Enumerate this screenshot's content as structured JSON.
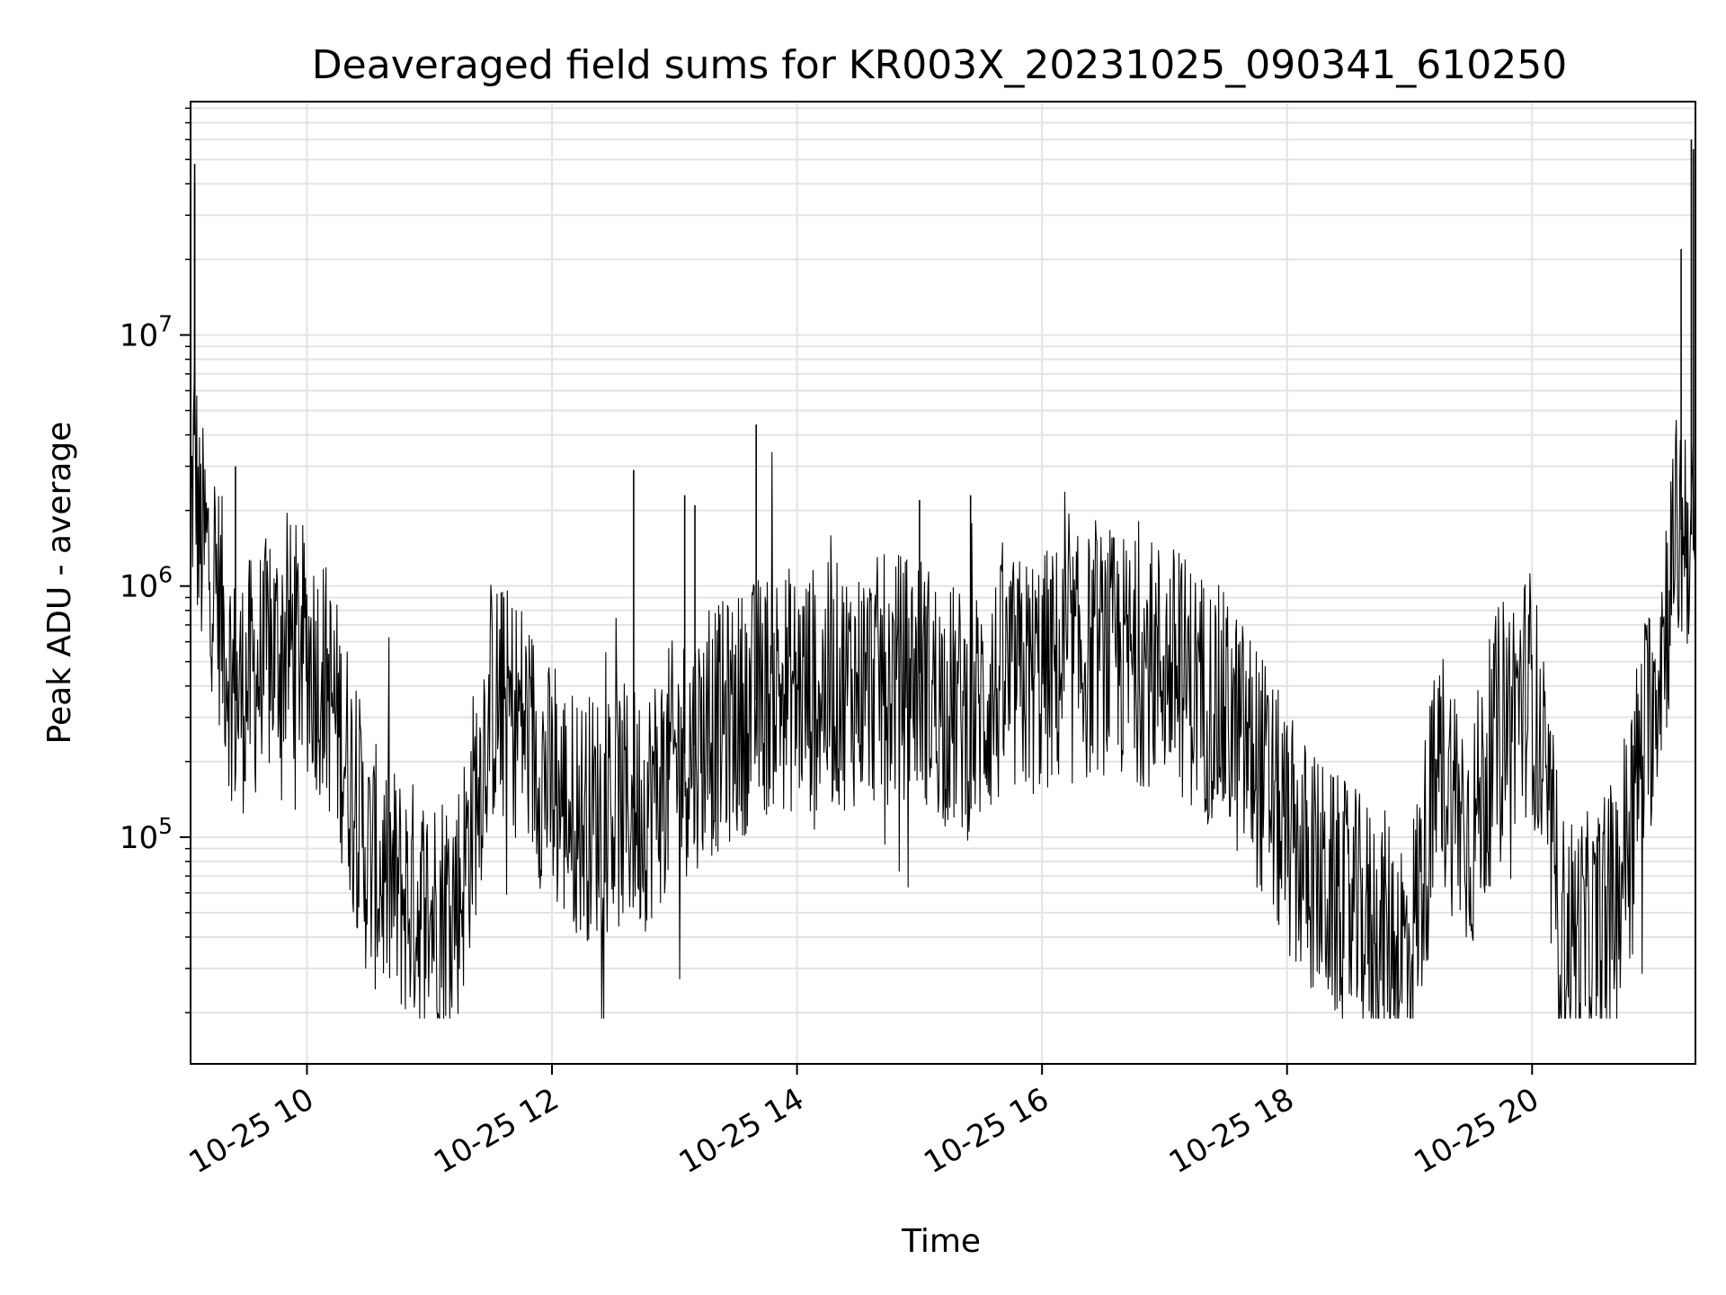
{
  "chart_data": {
    "type": "line",
    "title": "Deaveraged field sums for KR003X_20231025_090341_610250",
    "xlabel": "Time",
    "ylabel": "Peak ADU - average",
    "x_axis": {
      "type": "time",
      "range": [
        "2023-10-25 09:03",
        "2023-10-25 21:20"
      ],
      "ticks": [
        "2023-10-25 10:00",
        "2023-10-25 12:00",
        "2023-10-25 14:00",
        "2023-10-25 16:00",
        "2023-10-25 18:00",
        "2023-10-25 20:00"
      ],
      "tick_labels": [
        "10-25 10",
        "10-25 12",
        "10-25 14",
        "10-25 16",
        "10-25 18",
        "10-25 20"
      ]
    },
    "y_axis": {
      "scale": "log",
      "range": [
        12500,
        85000000
      ],
      "ticks": [
        100000,
        1000000,
        10000000
      ],
      "tick_labels": [
        {
          "base": "10",
          "exp": "5"
        },
        {
          "base": "10",
          "exp": "6"
        },
        {
          "base": "10",
          "exp": "7"
        }
      ]
    },
    "grid": true,
    "legend": "none",
    "line_color": "#000000",
    "series": [
      {
        "name": "",
        "x": [
          "2023-10-25 09:03",
          "2023-10-25 09:05",
          "2023-10-25 09:07",
          "2023-10-25 09:10",
          "2023-10-25 09:15",
          "2023-10-25 09:20",
          "2023-10-25 09:25",
          "2023-10-25 09:30",
          "2023-10-25 09:40",
          "2023-10-25 09:50",
          "2023-10-25 10:00",
          "2023-10-25 10:10",
          "2023-10-25 10:20",
          "2023-10-25 10:30",
          "2023-10-25 10:45",
          "2023-10-25 11:00",
          "2023-10-25 11:15",
          "2023-10-25 11:30",
          "2023-10-25 11:45",
          "2023-10-25 12:00",
          "2023-10-25 12:15",
          "2023-10-25 12:30",
          "2023-10-25 12:45",
          "2023-10-25 13:00",
          "2023-10-25 13:15",
          "2023-10-25 13:30",
          "2023-10-25 13:40",
          "2023-10-25 13:50",
          "2023-10-25 14:00",
          "2023-10-25 14:20",
          "2023-10-25 14:40",
          "2023-10-25 15:00",
          "2023-10-25 15:10",
          "2023-10-25 15:25",
          "2023-10-25 15:40",
          "2023-10-25 16:00",
          "2023-10-25 16:15",
          "2023-10-25 16:30",
          "2023-10-25 16:45",
          "2023-10-25 17:00",
          "2023-10-25 17:15",
          "2023-10-25 17:30",
          "2023-10-25 17:45",
          "2023-10-25 18:00",
          "2023-10-25 18:20",
          "2023-10-25 18:40",
          "2023-10-25 19:00",
          "2023-10-25 19:15",
          "2023-10-25 19:30",
          "2023-10-25 19:45",
          "2023-10-25 20:00",
          "2023-10-25 20:15",
          "2023-10-25 20:30",
          "2023-10-25 20:40",
          "2023-10-25 20:50",
          "2023-10-25 21:00",
          "2023-10-25 21:05",
          "2023-10-25 21:10",
          "2023-10-25 21:15",
          "2023-10-25 21:18",
          "2023-10-25 21:20"
        ],
        "values": [
          1600000,
          4000000,
          1500000,
          1400000,
          1100000,
          600000,
          350000,
          400000,
          500000,
          600000,
          550000,
          400000,
          200000,
          80000,
          60000,
          50000,
          60000,
          350000,
          300000,
          150000,
          120000,
          130000,
          130000,
          200000,
          250000,
          300000,
          350000,
          400000,
          380000,
          400000,
          420000,
          450000,
          350000,
          300000,
          400000,
          450000,
          500000,
          550000,
          500000,
          500000,
          400000,
          300000,
          200000,
          100000,
          60000,
          45000,
          35000,
          200000,
          100000,
          300000,
          400000,
          40000,
          40000,
          50000,
          150000,
          400000,
          700000,
          1500000,
          1800000,
          1600000,
          1200000
        ]
      }
    ],
    "spikes": {
      "x": [
        "2023-10-25 09:05",
        "2023-10-25 09:05",
        "2023-10-25 09:25",
        "2023-10-25 12:40",
        "2023-10-25 13:05",
        "2023-10-25 13:10",
        "2023-10-25 13:40",
        "2023-10-25 15:00",
        "2023-10-25 15:25",
        "2023-10-25 21:13",
        "2023-10-25 21:18",
        "2023-10-25 21:19"
      ],
      "values": [
        40000000,
        48000000,
        3000000,
        2900000,
        2300000,
        2100000,
        4400000,
        2200000,
        2300000,
        22000000,
        60000000,
        55000000
      ]
    }
  }
}
